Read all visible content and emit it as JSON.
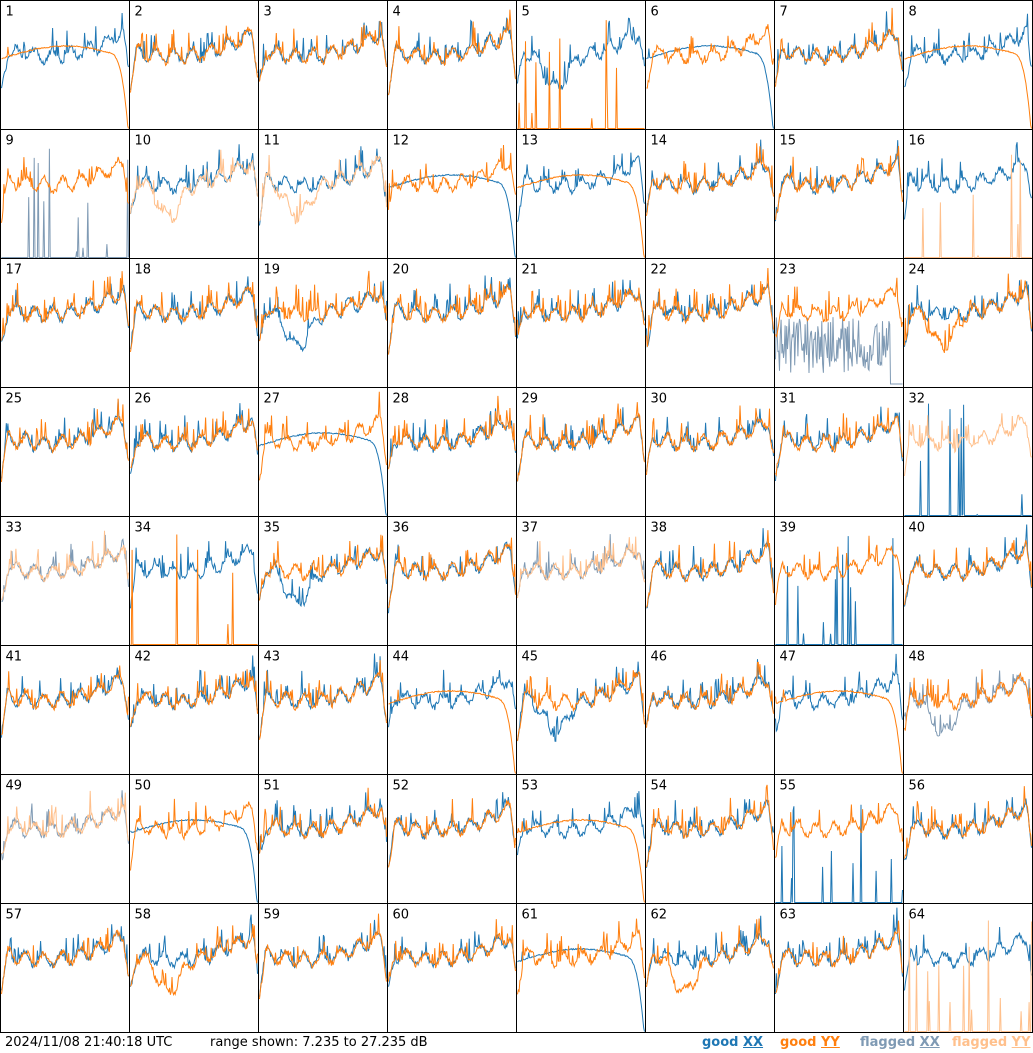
{
  "chart_data": {
    "type": "line",
    "layout_rows": 8,
    "layout_cols": 8,
    "x_axis": "frequency channel (no ticks printed)",
    "ylim_db": [
      7.235,
      27.235
    ],
    "grid": false,
    "legend_placement": "bottom-right",
    "panels": [
      {
        "id": "1",
        "xx": "good",
        "yy": "good",
        "xx_style": "normal",
        "yy_style": "rolloff"
      },
      {
        "id": "2",
        "xx": "good",
        "yy": "good",
        "xx_style": "normal",
        "yy_style": "normal"
      },
      {
        "id": "3",
        "xx": "good",
        "yy": "good",
        "xx_style": "normal",
        "yy_style": "normal"
      },
      {
        "id": "4",
        "xx": "good",
        "yy": "good",
        "xx_style": "normal",
        "yy_style": "normal"
      },
      {
        "id": "5",
        "xx": "good",
        "yy": "good",
        "xx_style": "dip",
        "yy_style": "spikes"
      },
      {
        "id": "6",
        "xx": "good",
        "yy": "good",
        "xx_style": "rolloff",
        "yy_style": "normal"
      },
      {
        "id": "7",
        "xx": "good",
        "yy": "good",
        "xx_style": "normal",
        "yy_style": "normal"
      },
      {
        "id": "8",
        "xx": "good",
        "yy": "good",
        "xx_style": "normal",
        "yy_style": "rolloff"
      },
      {
        "id": "9",
        "xx": "flagged",
        "yy": "good",
        "xx_style": "spikes",
        "yy_style": "normal"
      },
      {
        "id": "10",
        "xx": "good",
        "yy": "flagged",
        "xx_style": "normal",
        "yy_style": "dip"
      },
      {
        "id": "11",
        "xx": "good",
        "yy": "flagged",
        "xx_style": "normal",
        "yy_style": "dip"
      },
      {
        "id": "12",
        "xx": "good",
        "yy": "good",
        "xx_style": "rolloff",
        "yy_style": "normal"
      },
      {
        "id": "13",
        "xx": "good",
        "yy": "good",
        "xx_style": "normal",
        "yy_style": "rolloff"
      },
      {
        "id": "14",
        "xx": "good",
        "yy": "good",
        "xx_style": "normal",
        "yy_style": "normal"
      },
      {
        "id": "15",
        "xx": "good",
        "yy": "good",
        "xx_style": "normal",
        "yy_style": "normal"
      },
      {
        "id": "16",
        "xx": "good",
        "yy": "flagged",
        "xx_style": "normal",
        "yy_style": "spikes"
      },
      {
        "id": "17",
        "xx": "good",
        "yy": "good",
        "xx_style": "normal",
        "yy_style": "normal"
      },
      {
        "id": "18",
        "xx": "good",
        "yy": "good",
        "xx_style": "normal",
        "yy_style": "normal"
      },
      {
        "id": "19",
        "xx": "good",
        "yy": "good",
        "xx_style": "dip",
        "yy_style": "normal"
      },
      {
        "id": "20",
        "xx": "good",
        "yy": "good",
        "xx_style": "normal",
        "yy_style": "normal"
      },
      {
        "id": "21",
        "xx": "good",
        "yy": "good",
        "xx_style": "normal",
        "yy_style": "normal"
      },
      {
        "id": "22",
        "xx": "good",
        "yy": "good",
        "xx_style": "normal",
        "yy_style": "normal"
      },
      {
        "id": "23",
        "xx": "flagged",
        "yy": "good",
        "xx_style": "noise",
        "yy_style": "normal"
      },
      {
        "id": "24",
        "xx": "good",
        "yy": "good",
        "xx_style": "normal",
        "yy_style": "dip"
      },
      {
        "id": "25",
        "xx": "good",
        "yy": "good",
        "xx_style": "normal",
        "yy_style": "normal"
      },
      {
        "id": "26",
        "xx": "good",
        "yy": "good",
        "xx_style": "normal",
        "yy_style": "normal"
      },
      {
        "id": "27",
        "xx": "good",
        "yy": "good",
        "xx_style": "rolloff",
        "yy_style": "normal"
      },
      {
        "id": "28",
        "xx": "good",
        "yy": "good",
        "xx_style": "normal",
        "yy_style": "normal"
      },
      {
        "id": "29",
        "xx": "good",
        "yy": "good",
        "xx_style": "normal",
        "yy_style": "normal"
      },
      {
        "id": "30",
        "xx": "good",
        "yy": "good",
        "xx_style": "normal",
        "yy_style": "normal"
      },
      {
        "id": "31",
        "xx": "good",
        "yy": "good",
        "xx_style": "normal",
        "yy_style": "normal"
      },
      {
        "id": "32",
        "xx": "good",
        "yy": "flagged",
        "xx_style": "spikes",
        "yy_style": "normal"
      },
      {
        "id": "33",
        "xx": "flagged",
        "yy": "flagged",
        "xx_style": "normal",
        "yy_style": "normal"
      },
      {
        "id": "34",
        "xx": "good",
        "yy": "good",
        "xx_style": "normal",
        "yy_style": "spikes"
      },
      {
        "id": "35",
        "xx": "good",
        "yy": "good",
        "xx_style": "dip",
        "yy_style": "normal"
      },
      {
        "id": "36",
        "xx": "good",
        "yy": "good",
        "xx_style": "normal",
        "yy_style": "normal"
      },
      {
        "id": "37",
        "xx": "flagged",
        "yy": "flagged",
        "xx_style": "normal",
        "yy_style": "normal"
      },
      {
        "id": "38",
        "xx": "good",
        "yy": "good",
        "xx_style": "normal",
        "yy_style": "normal"
      },
      {
        "id": "39",
        "xx": "good",
        "yy": "good",
        "xx_style": "spikes",
        "yy_style": "normal"
      },
      {
        "id": "40",
        "xx": "good",
        "yy": "good",
        "xx_style": "normal",
        "yy_style": "normal"
      },
      {
        "id": "41",
        "xx": "good",
        "yy": "good",
        "xx_style": "normal",
        "yy_style": "normal"
      },
      {
        "id": "42",
        "xx": "good",
        "yy": "good",
        "xx_style": "normal",
        "yy_style": "normal"
      },
      {
        "id": "43",
        "xx": "good",
        "yy": "good",
        "xx_style": "normal",
        "yy_style": "normal"
      },
      {
        "id": "44",
        "xx": "good",
        "yy": "good",
        "xx_style": "normal",
        "yy_style": "rolloff"
      },
      {
        "id": "45",
        "xx": "good",
        "yy": "good",
        "xx_style": "dip",
        "yy_style": "normal"
      },
      {
        "id": "46",
        "xx": "good",
        "yy": "good",
        "xx_style": "normal",
        "yy_style": "normal"
      },
      {
        "id": "47",
        "xx": "good",
        "yy": "good",
        "xx_style": "normal",
        "yy_style": "rolloff"
      },
      {
        "id": "48",
        "xx": "flagged",
        "yy": "good",
        "xx_style": "dip",
        "yy_style": "normal"
      },
      {
        "id": "49",
        "xx": "flagged",
        "yy": "flagged",
        "xx_style": "normal",
        "yy_style": "normal"
      },
      {
        "id": "50",
        "xx": "good",
        "yy": "good",
        "xx_style": "rolloff",
        "yy_style": "normal"
      },
      {
        "id": "51",
        "xx": "good",
        "yy": "good",
        "xx_style": "normal",
        "yy_style": "normal"
      },
      {
        "id": "52",
        "xx": "good",
        "yy": "good",
        "xx_style": "normal",
        "yy_style": "normal"
      },
      {
        "id": "53",
        "xx": "good",
        "yy": "good",
        "xx_style": "normal",
        "yy_style": "rolloff"
      },
      {
        "id": "54",
        "xx": "good",
        "yy": "good",
        "xx_style": "normal",
        "yy_style": "normal"
      },
      {
        "id": "55",
        "xx": "good",
        "yy": "good",
        "xx_style": "spikes",
        "yy_style": "normal"
      },
      {
        "id": "56",
        "xx": "good",
        "yy": "good",
        "xx_style": "normal",
        "yy_style": "normal"
      },
      {
        "id": "57",
        "xx": "good",
        "yy": "good",
        "xx_style": "normal",
        "yy_style": "normal"
      },
      {
        "id": "58",
        "xx": "good",
        "yy": "good",
        "xx_style": "normal",
        "yy_style": "dip"
      },
      {
        "id": "59",
        "xx": "good",
        "yy": "good",
        "xx_style": "normal",
        "yy_style": "normal"
      },
      {
        "id": "60",
        "xx": "good",
        "yy": "good",
        "xx_style": "normal",
        "yy_style": "normal"
      },
      {
        "id": "61",
        "xx": "good",
        "yy": "good",
        "xx_style": "rolloff",
        "yy_style": "normal"
      },
      {
        "id": "62",
        "xx": "good",
        "yy": "good",
        "xx_style": "normal",
        "yy_style": "dip"
      },
      {
        "id": "63",
        "xx": "good",
        "yy": "good",
        "xx_style": "normal",
        "yy_style": "normal"
      },
      {
        "id": "64",
        "xx": "good",
        "yy": "flagged",
        "xx_style": "normal",
        "yy_style": "spikes"
      }
    ]
  },
  "footer": {
    "timestamp": "2024/11/08 21:40:18 UTC",
    "range_text": "range shown: 7.235 to 27.235 dB"
  },
  "legend": {
    "good_prefix": "good ",
    "flagged_prefix": "flagged ",
    "xx": "XX",
    "yy": "YY"
  },
  "colors": {
    "good_xx": "#1f77b4",
    "good_yy": "#ff7f0e",
    "flagged_xx": "#7f9ab4",
    "flagged_yy": "#ffc08c"
  }
}
